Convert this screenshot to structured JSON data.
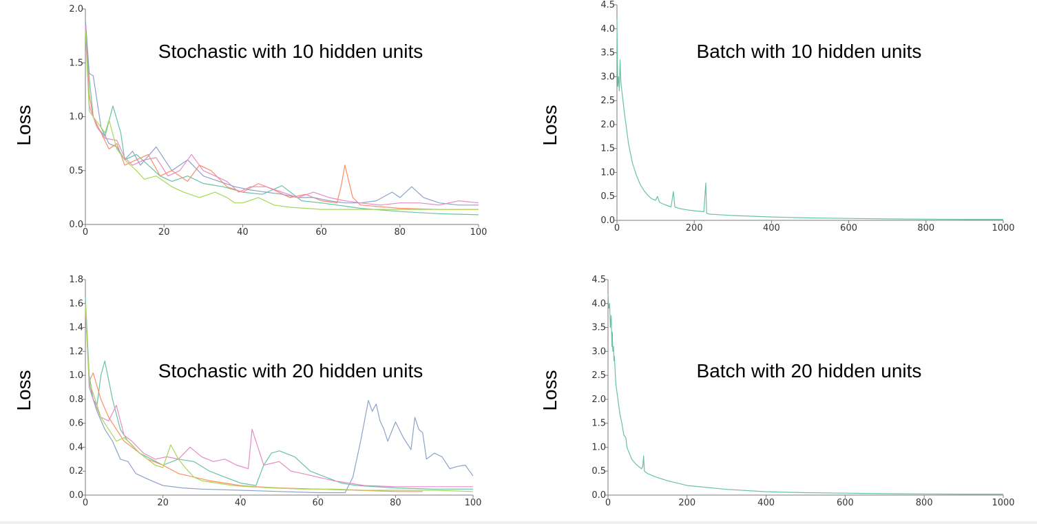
{
  "colors": {
    "teal": "#66c2a5",
    "orange": "#fc8d62",
    "blue": "#8da0cb",
    "pink": "#e78ac3",
    "green": "#a6d854",
    "yellow": "#ffd92f"
  },
  "chart_data": [
    {
      "type": "line",
      "title": "Stochastic with 10 hidden units",
      "ylabel": "Loss",
      "xlim": [
        0,
        100
      ],
      "ylim": [
        0,
        2.0
      ],
      "xticks": [
        0,
        20,
        40,
        60,
        80,
        100
      ],
      "xtick_labels": [
        "0",
        "20",
        "40",
        "60",
        "80",
        "100"
      ],
      "yticks": [
        0,
        0.5,
        1.0,
        1.5,
        2.0
      ],
      "ytick_labels": [
        "0.0",
        "0.5",
        "1.0",
        "1.5",
        "2.0"
      ],
      "series": [
        {
          "color": "#66c2a5",
          "x": [
            0,
            1,
            2,
            3,
            5,
            7,
            9,
            10,
            13,
            16,
            19,
            22,
            26,
            30,
            35,
            40,
            45,
            50,
            55,
            60,
            70,
            80,
            90,
            100
          ],
          "y": [
            1.9,
            1.35,
            1.0,
            0.9,
            0.82,
            1.1,
            0.85,
            0.6,
            0.65,
            0.55,
            0.45,
            0.4,
            0.45,
            0.38,
            0.35,
            0.3,
            0.28,
            0.36,
            0.22,
            0.2,
            0.15,
            0.12,
            0.1,
            0.09
          ]
        },
        {
          "color": "#fc8d62",
          "x": [
            0,
            1,
            2,
            4,
            6,
            8,
            10,
            13,
            16,
            19,
            22,
            26,
            29,
            32,
            36,
            40,
            44,
            48,
            52,
            56,
            60,
            64,
            65,
            66,
            68,
            70,
            80,
            90,
            100
          ],
          "y": [
            1.85,
            1.2,
            1.0,
            0.85,
            0.7,
            0.75,
            0.55,
            0.6,
            0.65,
            0.45,
            0.5,
            0.4,
            0.55,
            0.5,
            0.35,
            0.3,
            0.38,
            0.32,
            0.25,
            0.28,
            0.22,
            0.2,
            0.35,
            0.55,
            0.25,
            0.18,
            0.15,
            0.14,
            0.14
          ]
        },
        {
          "color": "#8da0cb",
          "x": [
            0,
            1,
            2,
            4,
            6,
            8,
            10,
            12,
            14,
            18,
            22,
            26,
            30,
            34,
            38,
            42,
            46,
            50,
            54,
            58,
            62,
            66,
            70,
            74,
            78,
            80,
            83,
            86,
            90,
            95,
            100
          ],
          "y": [
            1.9,
            1.4,
            1.38,
            0.9,
            0.75,
            0.72,
            0.6,
            0.68,
            0.55,
            0.72,
            0.5,
            0.6,
            0.45,
            0.4,
            0.35,
            0.32,
            0.3,
            0.28,
            0.25,
            0.25,
            0.22,
            0.2,
            0.2,
            0.22,
            0.3,
            0.25,
            0.35,
            0.25,
            0.2,
            0.18,
            0.18
          ]
        },
        {
          "color": "#e78ac3",
          "x": [
            0,
            1,
            3,
            5,
            8,
            10,
            12,
            15,
            18,
            21,
            24,
            27,
            30,
            33,
            36,
            39,
            42,
            46,
            50,
            54,
            58,
            62,
            66,
            70,
            75,
            80,
            85,
            90,
            95,
            100
          ],
          "y": [
            1.85,
            1.1,
            0.9,
            0.8,
            0.78,
            0.62,
            0.55,
            0.6,
            0.62,
            0.45,
            0.5,
            0.65,
            0.5,
            0.45,
            0.4,
            0.3,
            0.35,
            0.35,
            0.3,
            0.25,
            0.3,
            0.25,
            0.22,
            0.2,
            0.18,
            0.2,
            0.2,
            0.18,
            0.22,
            0.2
          ]
        },
        {
          "color": "#a6d854",
          "x": [
            0,
            1,
            3,
            5,
            6,
            8,
            10,
            13,
            15,
            18,
            22,
            25,
            29,
            33,
            36,
            38,
            40,
            44,
            48,
            52,
            56,
            60,
            66,
            72,
            80,
            90,
            100
          ],
          "y": [
            1.8,
            1.05,
            0.95,
            0.85,
            0.97,
            0.7,
            0.6,
            0.5,
            0.42,
            0.45,
            0.35,
            0.3,
            0.25,
            0.3,
            0.25,
            0.2,
            0.2,
            0.25,
            0.18,
            0.16,
            0.15,
            0.14,
            0.14,
            0.14,
            0.14,
            0.14,
            0.14
          ]
        }
      ]
    },
    {
      "type": "line",
      "title": "Batch with 10 hidden units",
      "ylabel": "Loss",
      "xlim": [
        0,
        1000
      ],
      "ylim": [
        0,
        4.5
      ],
      "xticks": [
        0,
        200,
        400,
        600,
        800,
        1000
      ],
      "xtick_labels": [
        "0",
        "200",
        "400",
        "600",
        "800",
        "1000"
      ],
      "yticks": [
        0,
        0.5,
        1.0,
        1.5,
        2.0,
        2.5,
        3.0,
        3.5,
        4.0,
        4.5
      ],
      "ytick_labels": [
        "0.0",
        "0.5",
        "1.0",
        "1.5",
        "2.0",
        "2.5",
        "3.0",
        "3.5",
        "4.0",
        "4.5"
      ],
      "series": [
        {
          "color": "#66c2a5",
          "x": [
            0,
            2,
            4,
            6,
            8,
            10,
            14,
            20,
            30,
            40,
            50,
            60,
            70,
            80,
            90,
            100,
            105,
            110,
            120,
            140,
            146,
            150,
            160,
            180,
            200,
            225,
            230,
            232,
            236,
            240,
            260,
            300,
            400,
            500,
            600,
            700,
            800,
            900,
            1000
          ],
          "y": [
            4.2,
            2.8,
            3.0,
            2.7,
            3.35,
            2.9,
            2.6,
            2.2,
            1.6,
            1.2,
            0.95,
            0.75,
            0.62,
            0.52,
            0.45,
            0.42,
            0.5,
            0.38,
            0.34,
            0.28,
            0.6,
            0.28,
            0.25,
            0.22,
            0.2,
            0.18,
            0.78,
            0.15,
            0.14,
            0.13,
            0.12,
            0.1,
            0.07,
            0.05,
            0.04,
            0.03,
            0.025,
            0.02,
            0.02
          ]
        }
      ]
    },
    {
      "type": "line",
      "title": "Stochastic with 20 hidden units",
      "ylabel": "Loss",
      "xlim": [
        0,
        100
      ],
      "ylim": [
        0,
        1.8
      ],
      "xticks": [
        0,
        20,
        40,
        60,
        80,
        100
      ],
      "xtick_labels": [
        "0",
        "20",
        "40",
        "60",
        "80",
        "100"
      ],
      "yticks": [
        0,
        0.2,
        0.4,
        0.6,
        0.8,
        1.0,
        1.2,
        1.4,
        1.6,
        1.8
      ],
      "ytick_labels": [
        "0.0",
        "0.2",
        "0.4",
        "0.6",
        "0.8",
        "1.0",
        "1.2",
        "1.4",
        "1.6",
        "1.8"
      ],
      "series": [
        {
          "color": "#66c2a5",
          "x": [
            0,
            1,
            2,
            3,
            4,
            5,
            7,
            9,
            11,
            14,
            17,
            20,
            24,
            28,
            32,
            36,
            40,
            44,
            46,
            48,
            50,
            54,
            58,
            62,
            66,
            70,
            80,
            90,
            100
          ],
          "y": [
            1.65,
            1.0,
            0.8,
            0.75,
            1.0,
            1.12,
            0.8,
            0.55,
            0.45,
            0.35,
            0.3,
            0.25,
            0.3,
            0.28,
            0.2,
            0.15,
            0.1,
            0.08,
            0.25,
            0.35,
            0.37,
            0.32,
            0.2,
            0.15,
            0.1,
            0.08,
            0.06,
            0.05,
            0.05
          ]
        },
        {
          "color": "#fc8d62",
          "x": [
            0,
            1,
            2,
            4,
            6,
            8,
            10,
            12,
            16,
            20,
            24,
            28,
            32,
            36,
            40,
            44,
            50,
            60,
            70,
            80,
            87
          ],
          "y": [
            1.6,
            0.95,
            1.02,
            0.8,
            0.65,
            0.55,
            0.45,
            0.4,
            0.3,
            0.25,
            0.18,
            0.15,
            0.12,
            0.1,
            0.08,
            0.07,
            0.06,
            0.05,
            0.04,
            0.03,
            0.03
          ]
        },
        {
          "color": "#8da0cb",
          "x": [
            0,
            1,
            3,
            5,
            7,
            9,
            11,
            13,
            15,
            17,
            20,
            25,
            30,
            40,
            50,
            60,
            65,
            67,
            69,
            71,
            73,
            74,
            75,
            76,
            77,
            78,
            80,
            82,
            84,
            85,
            86,
            87,
            88,
            90,
            92,
            94,
            96,
            98,
            100
          ],
          "y": [
            1.6,
            0.9,
            0.7,
            0.55,
            0.45,
            0.3,
            0.28,
            0.18,
            0.15,
            0.12,
            0.08,
            0.06,
            0.05,
            0.04,
            0.03,
            0.02,
            0.02,
            0.02,
            0.15,
            0.45,
            0.79,
            0.7,
            0.76,
            0.62,
            0.55,
            0.45,
            0.61,
            0.48,
            0.38,
            0.65,
            0.55,
            0.52,
            0.3,
            0.35,
            0.32,
            0.22,
            0.24,
            0.25,
            0.16
          ]
        },
        {
          "color": "#e78ac3",
          "x": [
            0,
            1,
            2,
            4,
            6,
            8,
            10,
            12,
            15,
            18,
            21,
            24,
            27,
            30,
            33,
            36,
            39,
            42,
            43,
            44,
            46,
            50,
            53,
            56,
            60,
            64,
            68,
            72,
            80,
            90,
            100
          ],
          "y": [
            1.55,
            0.95,
            0.8,
            0.65,
            0.62,
            0.75,
            0.5,
            0.45,
            0.35,
            0.3,
            0.32,
            0.3,
            0.4,
            0.32,
            0.28,
            0.3,
            0.25,
            0.22,
            0.55,
            0.45,
            0.25,
            0.28,
            0.2,
            0.18,
            0.15,
            0.12,
            0.1,
            0.08,
            0.07,
            0.07,
            0.07
          ]
        },
        {
          "color": "#a6d854",
          "x": [
            0,
            1,
            2,
            4,
            6,
            8,
            10,
            12,
            14,
            16,
            18,
            20,
            22,
            24,
            26,
            28,
            30,
            34,
            38,
            42,
            48,
            56,
            64,
            72,
            80,
            90,
            100
          ],
          "y": [
            1.6,
            0.95,
            0.85,
            0.65,
            0.55,
            0.45,
            0.48,
            0.42,
            0.35,
            0.3,
            0.25,
            0.23,
            0.42,
            0.3,
            0.22,
            0.15,
            0.12,
            0.1,
            0.08,
            0.07,
            0.06,
            0.05,
            0.05,
            0.04,
            0.04,
            0.04,
            0.03
          ]
        }
      ]
    },
    {
      "type": "line",
      "title": "Batch with 20 hidden units",
      "ylabel": "Loss",
      "xlim": [
        0,
        1000
      ],
      "ylim": [
        0,
        4.5
      ],
      "xticks": [
        0,
        200,
        400,
        600,
        800,
        1000
      ],
      "xtick_labels": [
        "0",
        "200",
        "400",
        "600",
        "800",
        "1000"
      ],
      "yticks": [
        0,
        0.5,
        1.0,
        1.5,
        2.0,
        2.5,
        3.0,
        3.5,
        4.0,
        4.5
      ],
      "ytick_labels": [
        "0.0",
        "0.5",
        "1.0",
        "1.5",
        "2.0",
        "2.5",
        "3.0",
        "3.5",
        "4.0",
        "4.5"
      ],
      "series": [
        {
          "color": "#66c2a5",
          "x": [
            0,
            2,
            4,
            6,
            8,
            10,
            11,
            12,
            14,
            15,
            16,
            18,
            20,
            25,
            30,
            35,
            40,
            45,
            48,
            50,
            55,
            60,
            70,
            80,
            85,
            88,
            90,
            92,
            95,
            100,
            120,
            150,
            200,
            300,
            400,
            500,
            600,
            700,
            800,
            900,
            1000
          ],
          "y": [
            4.2,
            3.9,
            4.0,
            3.5,
            3.75,
            3.1,
            3.4,
            3.0,
            3.1,
            2.8,
            2.9,
            2.6,
            2.3,
            2.0,
            1.7,
            1.5,
            1.25,
            1.2,
            1.0,
            0.95,
            0.85,
            0.75,
            0.65,
            0.58,
            0.55,
            0.6,
            0.82,
            0.5,
            0.48,
            0.45,
            0.38,
            0.3,
            0.2,
            0.12,
            0.07,
            0.05,
            0.04,
            0.03,
            0.025,
            0.02,
            0.02
          ]
        }
      ]
    }
  ]
}
